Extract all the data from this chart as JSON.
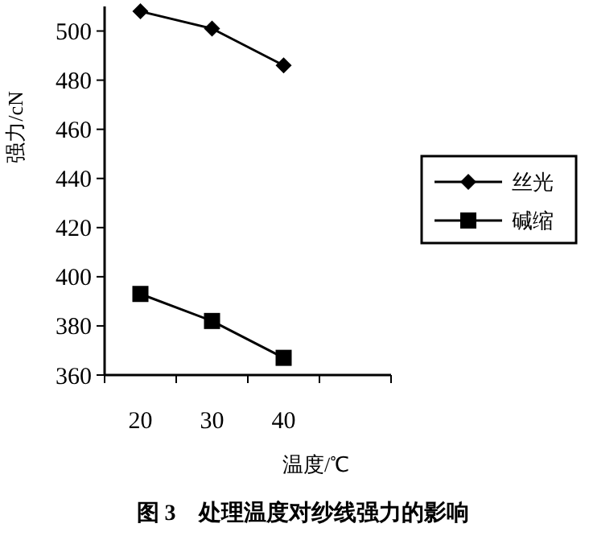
{
  "chart_data": {
    "type": "line",
    "title": "图 3　处理温度对纱线强力的影响",
    "xlabel": "温度/℃",
    "ylabel": "强力/cN",
    "categories": [
      "20",
      "30",
      "40",
      null
    ],
    "series": [
      {
        "name": "丝光",
        "color": "#000000",
        "values": [
          508,
          501,
          486,
          null
        ],
        "marker": "diamond"
      },
      {
        "name": "碱缩",
        "color": "#000000",
        "values": [
          393,
          382,
          367,
          null
        ],
        "marker": "square"
      }
    ],
    "ylim": [
      360,
      510
    ],
    "yticks": [
      360,
      380,
      400,
      420,
      440,
      460,
      480,
      500
    ],
    "grid": false,
    "legend": "right",
    "line_style": "solid"
  }
}
